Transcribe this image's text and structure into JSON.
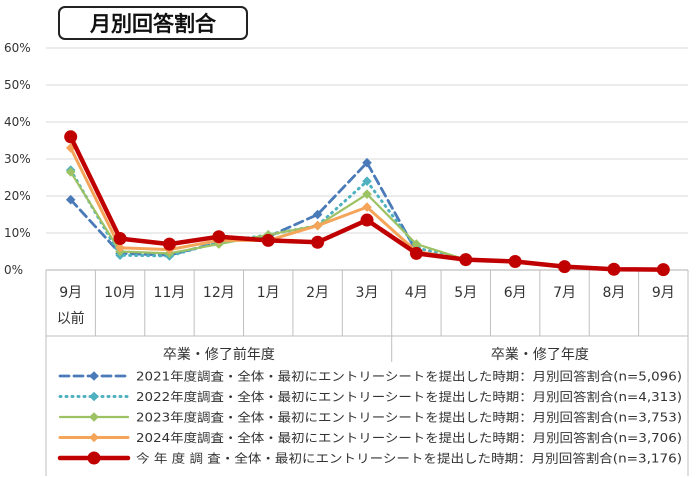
{
  "chart_data": {
    "type": "line",
    "title": "月別回答割合",
    "y_ticks": [
      "60%",
      "50%",
      "40%",
      "30%",
      "20%",
      "10%",
      "0%"
    ],
    "ylim": [
      0,
      60
    ],
    "grid": true,
    "categories": [
      "9月",
      "10月",
      "11月",
      "12月",
      "1月",
      "2月",
      "3月",
      "4月",
      "5月",
      "6月",
      "7月",
      "8月",
      "9月"
    ],
    "category_sublabels": [
      "以前",
      "",
      "",
      "",
      "",
      "",
      "",
      "",
      "",
      "",
      "",
      "",
      ""
    ],
    "groups": [
      {
        "label": "卒業・修了前年度",
        "span": [
          0,
          6
        ]
      },
      {
        "label": "卒業・修了年度",
        "span": [
          7,
          12
        ]
      }
    ],
    "legend_position": "bottom",
    "series": [
      {
        "name": "2021年度調査・全体・最初にエントリーシートを提出した時期：月別回答割合(n=5,096)",
        "color": "#4a7ab8",
        "style": "dashed",
        "marker": "diamond",
        "values": [
          19,
          4.5,
          4,
          7.5,
          9,
          15,
          29,
          5,
          2.8,
          2.3,
          1,
          0.3,
          0.1
        ]
      },
      {
        "name": "2022年度調査・全体・最初にエントリーシートを提出した時期：月別回答割合(n=4,313)",
        "color": "#4fb0bf",
        "style": "dotted",
        "marker": "diamond",
        "values": [
          27,
          4,
          3.8,
          7.5,
          9.5,
          12,
          24,
          6,
          2.8,
          2.3,
          1,
          0.3,
          0.1
        ]
      },
      {
        "name": "2023年度調査・全体・最初にエントリーシートを提出した時期：月別回答割合(n=3,753)",
        "color": "#9cc263",
        "style": "double",
        "marker": "diamond",
        "values": [
          26.5,
          5,
          4.5,
          7,
          9.5,
          12,
          20.5,
          7,
          2.8,
          2.3,
          1,
          0.3,
          0.1
        ]
      },
      {
        "name": "2024年度調査・全体・最初にエントリーシートを提出した時期：月別回答割合(n=3,706)",
        "color": "#f5a55a",
        "style": "solid",
        "marker": "diamond",
        "values": [
          33,
          6,
          5.5,
          8,
          8,
          12,
          17,
          5,
          2.8,
          2.3,
          1,
          0.3,
          0.1
        ]
      },
      {
        "name": "今 年 度 調 査・全体・最初にエントリーシートを提出した時期：月別回答割合(n=3,176)",
        "color": "#c00000",
        "style": "thick",
        "marker": "circle",
        "values": [
          36,
          8.5,
          7,
          9,
          8,
          7.5,
          13.5,
          4.5,
          2.8,
          2.3,
          0.9,
          0.2,
          0.1
        ]
      }
    ]
  }
}
